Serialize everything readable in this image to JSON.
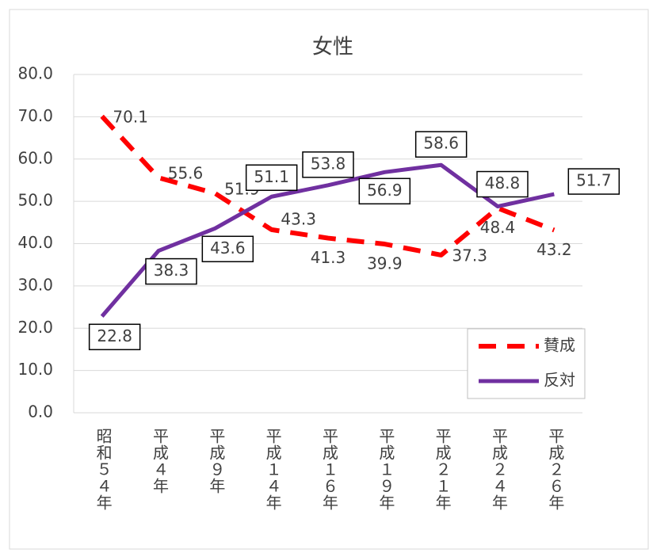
{
  "chart_data": {
    "type": "line",
    "title": "女性",
    "categories": [
      "昭和５４年",
      "平成４年",
      "平成９年",
      "平成１４年",
      "平成１６年",
      "平成１９年",
      "平成２１年",
      "平成２４年",
      "平成２６年"
    ],
    "series": [
      {
        "name": "賛成",
        "color": "#ff0000",
        "dash": true,
        "values": [
          70.1,
          55.6,
          51.9,
          43.3,
          41.3,
          39.9,
          37.3,
          48.4,
          43.2
        ]
      },
      {
        "name": "反対",
        "color": "#7030a0",
        "dash": false,
        "values": [
          22.8,
          38.3,
          43.6,
          51.1,
          53.8,
          56.9,
          58.6,
          48.8,
          51.7
        ]
      }
    ],
    "ylim": [
      0,
      80
    ],
    "yticks": [
      {
        "value": 0,
        "label": "0.0"
      },
      {
        "value": 10,
        "label": "10.0"
      },
      {
        "value": 20,
        "label": "20.0"
      },
      {
        "value": 30,
        "label": "30.0"
      },
      {
        "value": 40,
        "label": "40.0"
      },
      {
        "value": 50,
        "label": "50.0"
      },
      {
        "value": 60,
        "label": "60.0"
      },
      {
        "value": 70,
        "label": "70.0"
      },
      {
        "value": 80,
        "label": "80.0"
      }
    ],
    "grid": true,
    "legend": "lower right"
  }
}
